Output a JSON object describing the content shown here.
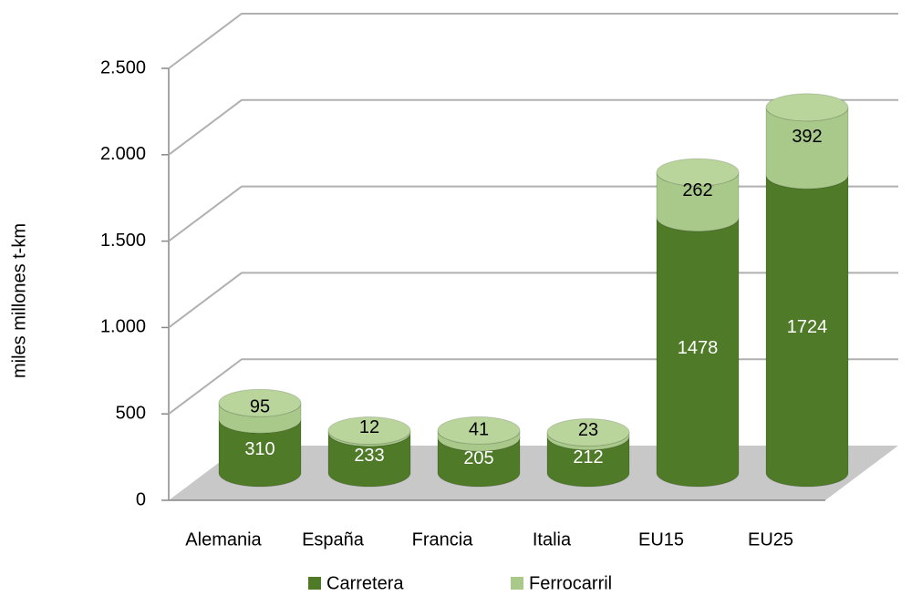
{
  "chart_data": {
    "type": "bar",
    "stacked": true,
    "ylabel": "miles millones t-km",
    "categories": [
      "Alemania",
      "España",
      "Francia",
      "Italia",
      "EU15",
      "EU25"
    ],
    "series": [
      {
        "name": "Carretera",
        "color": "#4f7a28",
        "values": [
          310,
          233,
          205,
          212,
          1478,
          1724
        ]
      },
      {
        "name": "Ferrocarril",
        "color": "#a9c98a",
        "values": [
          95,
          12,
          41,
          23,
          262,
          392
        ]
      }
    ],
    "ylim": [
      0,
      2500
    ],
    "yticks": [
      0,
      500,
      {
        "value": 1000,
        "label": "1.000"
      },
      {
        "value": 1500,
        "label": "1.500"
      },
      {
        "value": 2000,
        "label": "2.000"
      },
      {
        "value": 2500,
        "label": "2.500"
      }
    ],
    "grid": true,
    "legend": "bottom"
  }
}
